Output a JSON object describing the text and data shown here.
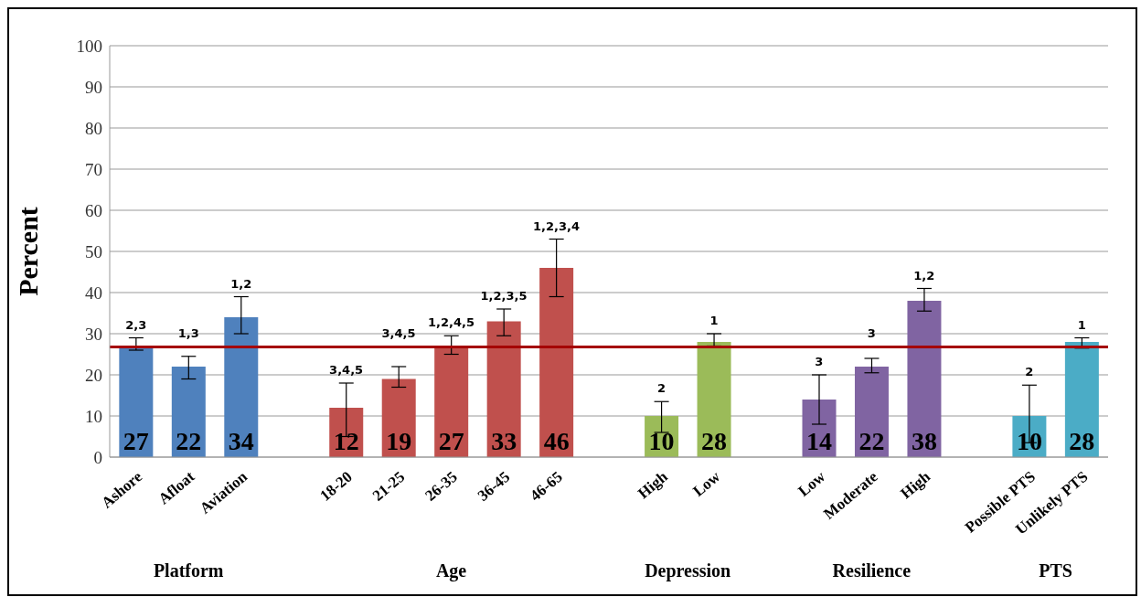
{
  "chart_data": {
    "type": "bar",
    "ylabel": "Percent",
    "categories": [
      "Ashore",
      "Afloat",
      "Aviation",
      null,
      "18-20",
      "21-25",
      "26-35",
      "36-45",
      "46-65",
      null,
      "High",
      "Low",
      null,
      "Low",
      "Moderate",
      "High",
      null,
      "Possible PTS",
      "Unlikely PTS"
    ],
    "values": [
      27,
      22,
      34,
      null,
      12,
      19,
      27,
      33,
      46,
      null,
      10,
      28,
      null,
      14,
      22,
      38,
      null,
      10,
      28
    ],
    "colors": [
      "#4f81bd",
      "#4f81bd",
      "#4f81bd",
      null,
      "#c0504d",
      "#c0504d",
      "#c0504d",
      "#c0504d",
      "#c0504d",
      null,
      "#9bbb59",
      "#9bbb59",
      null,
      "#8064a2",
      "#8064a2",
      "#8064a2",
      null,
      "#4bacc6",
      "#4bacc6"
    ],
    "errors": [
      [
        26,
        29
      ],
      [
        19,
        24.5
      ],
      [
        30,
        39
      ],
      null,
      [
        5,
        18
      ],
      [
        17,
        22
      ],
      [
        25,
        29.5
      ],
      [
        29.5,
        36
      ],
      [
        39,
        53
      ],
      null,
      [
        6,
        13.5
      ],
      [
        27,
        30
      ],
      null,
      [
        8,
        20
      ],
      [
        20.5,
        24
      ],
      [
        35.5,
        41
      ],
      null,
      [
        3.5,
        17.5
      ],
      [
        26.5,
        29
      ]
    ],
    "data_labels": true,
    "ylim": [
      0,
      100
    ],
    "yticks": [
      0,
      10,
      20,
      30,
      40,
      50,
      60,
      70,
      80,
      90,
      100
    ],
    "grid": "y",
    "ref_lines": [
      {
        "axis": "y",
        "value": 26.8,
        "color": "#a50000"
      }
    ],
    "annotations": [
      "2,3",
      "1,3",
      "1,2",
      "3,4,5",
      "3,4,5",
      "1,2,4,5",
      "1,2,3,5",
      "1,2,3,4",
      "2",
      "1",
      "3",
      "3",
      "1,2",
      "2",
      "1",
      "Platform",
      "Age",
      "Depression",
      "Resilience",
      "PTS"
    ]
  }
}
